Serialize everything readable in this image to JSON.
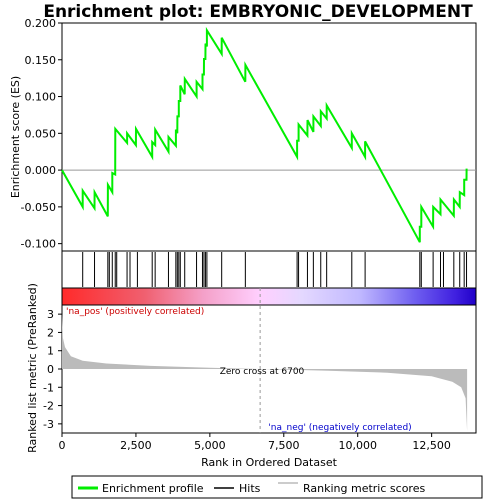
{
  "chart_data": {
    "type": "line",
    "title": "Enrichment plot: EMBRYONIC_DEVELOPMENT",
    "top_panel": {
      "ylabel": "Enrichment score (ES)",
      "ylim": [
        -0.11,
        0.2
      ],
      "yticks": [
        "-0.100",
        "-0.050",
        "0.000",
        "0.050",
        "0.100",
        "0.150",
        "0.200"
      ],
      "ytick_values": [
        -0.1,
        -0.05,
        0.0,
        0.05,
        0.1,
        0.15,
        0.2
      ],
      "series_name": "Enrichment profile",
      "series_color": "#00ee00",
      "es_points": [
        [
          0,
          0
        ],
        [
          700,
          -0.05
        ],
        [
          701,
          -0.028
        ],
        [
          1100,
          -0.052
        ],
        [
          1101,
          -0.03
        ],
        [
          1550,
          -0.063
        ],
        [
          1551,
          -0.02
        ],
        [
          1700,
          -0.03
        ],
        [
          1701,
          -0.004
        ],
        [
          1800,
          -0.006
        ],
        [
          1801,
          0.056
        ],
        [
          2200,
          0.037
        ],
        [
          2201,
          0.05
        ],
        [
          2500,
          0.034
        ],
        [
          2501,
          0.056
        ],
        [
          3050,
          0.018
        ],
        [
          3051,
          0.038
        ],
        [
          3150,
          0.034
        ],
        [
          3151,
          0.055
        ],
        [
          3600,
          0.025
        ],
        [
          3601,
          0.045
        ],
        [
          3850,
          0.033
        ],
        [
          3851,
          0.055
        ],
        [
          3900,
          0.05
        ],
        [
          3901,
          0.073
        ],
        [
          3950,
          0.073
        ],
        [
          3951,
          0.094
        ],
        [
          4000,
          0.094
        ],
        [
          4001,
          0.115
        ],
        [
          4150,
          0.103
        ],
        [
          4151,
          0.124
        ],
        [
          4550,
          0.1
        ],
        [
          4551,
          0.12
        ],
        [
          4750,
          0.11
        ],
        [
          4751,
          0.13
        ],
        [
          4800,
          0.13
        ],
        [
          4801,
          0.151
        ],
        [
          4850,
          0.151
        ],
        [
          4851,
          0.172
        ],
        [
          4900,
          0.168
        ],
        [
          4901,
          0.19
        ],
        [
          5400,
          0.158
        ],
        [
          5401,
          0.18
        ],
        [
          6200,
          0.12
        ],
        [
          6201,
          0.143
        ],
        [
          7950,
          0.018
        ],
        [
          7951,
          0.04
        ],
        [
          8000,
          0.04
        ],
        [
          8001,
          0.062
        ],
        [
          8300,
          0.047
        ],
        [
          8301,
          0.068
        ],
        [
          8500,
          0.052
        ],
        [
          8501,
          0.073
        ],
        [
          8750,
          0.06
        ],
        [
          8751,
          0.08
        ],
        [
          8950,
          0.07
        ],
        [
          8951,
          0.088
        ],
        [
          9800,
          0.03
        ],
        [
          9801,
          0.05
        ],
        [
          10250,
          0.018
        ],
        [
          10251,
          0.039
        ],
        [
          12100,
          -0.098
        ],
        [
          12101,
          -0.077
        ],
        [
          12150,
          -0.077
        ],
        [
          12151,
          -0.05
        ],
        [
          12550,
          -0.077
        ],
        [
          12551,
          -0.05
        ],
        [
          12800,
          -0.06
        ],
        [
          12801,
          -0.04
        ],
        [
          13250,
          -0.062
        ],
        [
          13251,
          -0.04
        ],
        [
          13450,
          -0.05
        ],
        [
          13451,
          -0.03
        ],
        [
          13600,
          -0.034
        ],
        [
          13601,
          -0.013
        ],
        [
          13680,
          -0.013
        ],
        [
          13681,
          0.002
        ]
      ],
      "hit_positions": [
        700,
        1100,
        1550,
        1600,
        1700,
        1800,
        1850,
        2200,
        2300,
        2550,
        3050,
        3150,
        3600,
        3850,
        3900,
        3950,
        4000,
        4150,
        4550,
        4750,
        4800,
        4850,
        4900,
        5400,
        6200,
        7950,
        8000,
        8300,
        8500,
        8750,
        8950,
        9800,
        10250,
        12100,
        12150,
        12550,
        12800,
        12900,
        13250,
        13450,
        13600,
        13680
      ]
    },
    "bottom_panel": {
      "ylabel": "Ranked list metric (PreRanked)",
      "ylim": [
        -3.5,
        3.5
      ],
      "yticks": [
        "3",
        "2",
        "1",
        "0",
        "-1",
        "-2",
        "-3"
      ],
      "ytick_values": [
        3,
        2,
        1,
        0,
        -1,
        -2,
        -3
      ],
      "metric_curve": [
        [
          0,
          3.0
        ],
        [
          30,
          1.7
        ],
        [
          100,
          1.2
        ],
        [
          300,
          0.7
        ],
        [
          700,
          0.45
        ],
        [
          1500,
          0.3
        ],
        [
          3000,
          0.17
        ],
        [
          5000,
          0.07
        ],
        [
          6700,
          0.0
        ],
        [
          9000,
          -0.1
        ],
        [
          11000,
          -0.2
        ],
        [
          12500,
          -0.4
        ],
        [
          13200,
          -0.7
        ],
        [
          13500,
          -1.0
        ],
        [
          13650,
          -1.6
        ],
        [
          13700,
          -3.4
        ]
      ],
      "zero_cross_label": "Zero cross at 6700",
      "zero_cross": 6700
    },
    "xlabel": "Rank in Ordered Dataset",
    "xlim": [
      0,
      14000
    ],
    "xticks": [
      "0",
      "2,500",
      "5,000",
      "7,500",
      "10,000",
      "12,500"
    ],
    "xtick_values": [
      0,
      2500,
      5000,
      7500,
      10000,
      12500
    ],
    "pos_label": "'na_pos' (positively correlated)",
    "neg_label": "'na_neg' (negatively correlated)",
    "legend": {
      "items": [
        {
          "label": "Enrichment profile",
          "color": "#00ee00"
        },
        {
          "label": "Hits",
          "color": "#000000"
        },
        {
          "label": "Ranking metric scores",
          "color": "#bbbbbb"
        }
      ]
    }
  }
}
